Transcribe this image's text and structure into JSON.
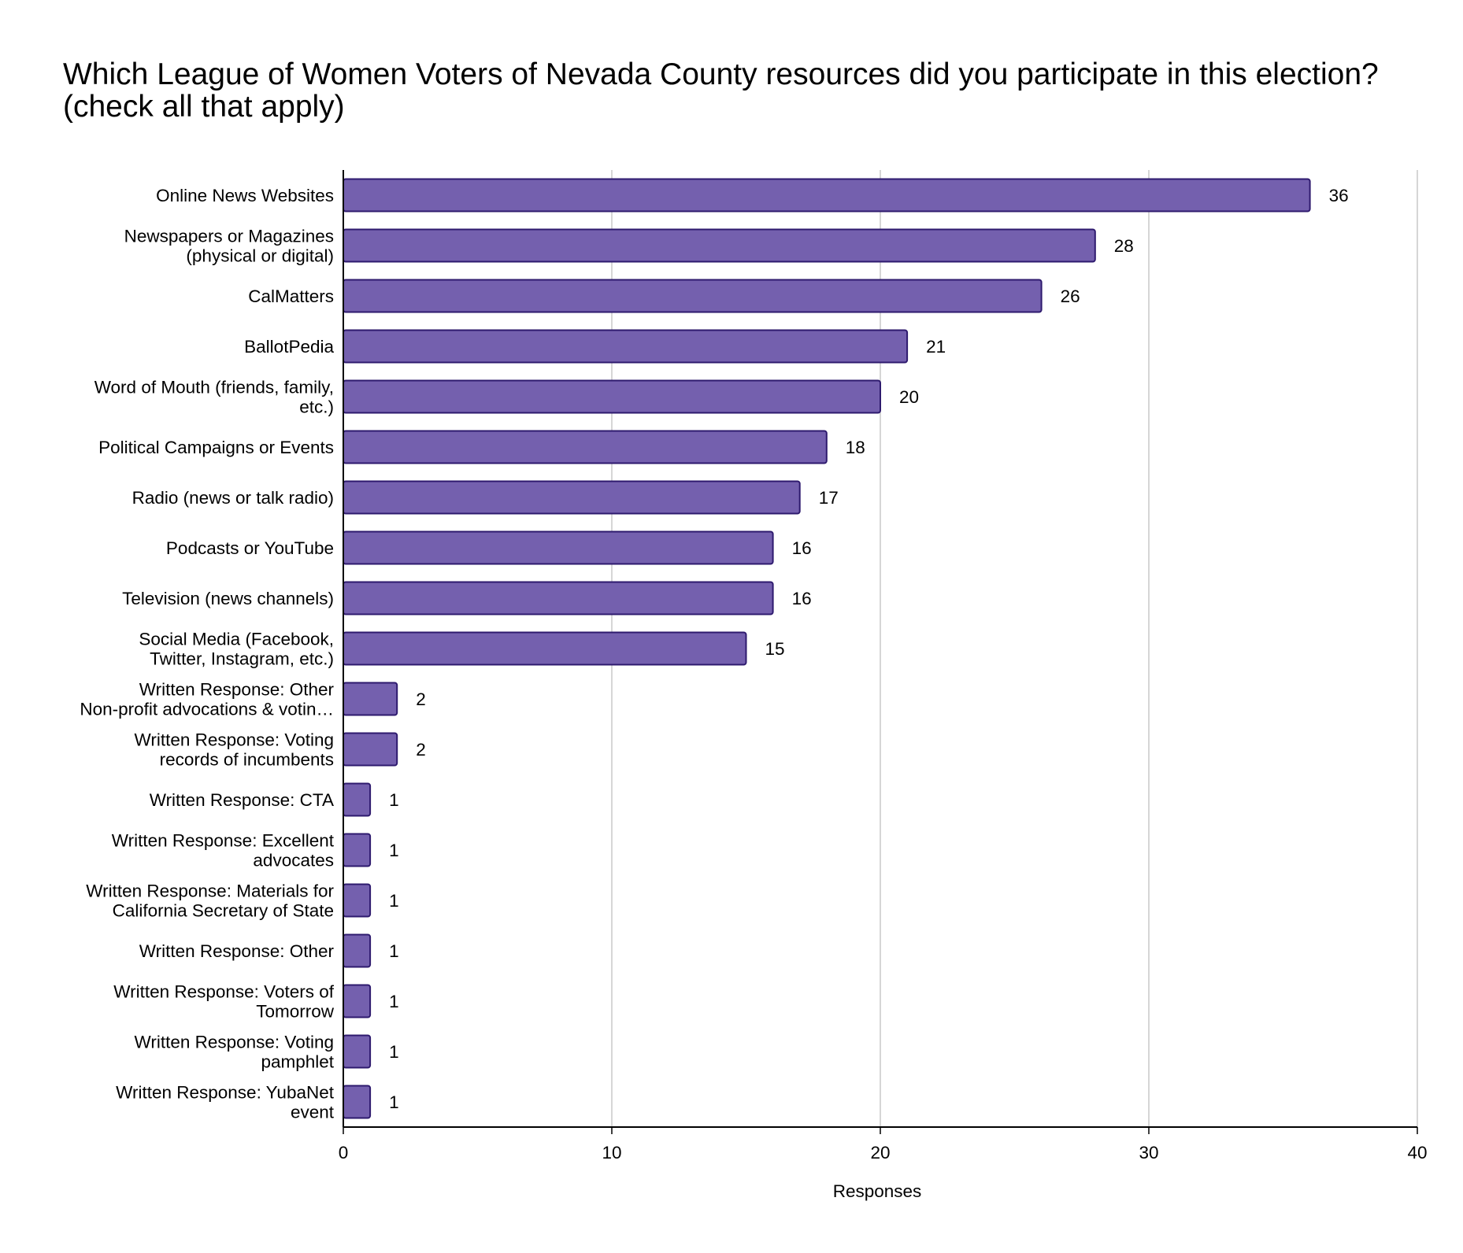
{
  "chart_data": {
    "type": "bar",
    "orientation": "horizontal",
    "title": "Which League of Women Voters of Nevada County resources did you participate in this election? (check all that apply)",
    "xlabel": "Responses",
    "ylabel": "",
    "xlim": [
      0,
      40
    ],
    "xticks": [
      0,
      10,
      20,
      30,
      40
    ],
    "grid": true,
    "bar_color": "#7460ae",
    "bar_edge_color": "#2e1a6e",
    "categories": [
      [
        "Online News Websites"
      ],
      [
        "Newspapers or Magazines",
        "(physical or digital)"
      ],
      [
        "CalMatters"
      ],
      [
        "BallotPedia"
      ],
      [
        "Word of Mouth (friends, family,",
        "etc.)"
      ],
      [
        "Political Campaigns or Events"
      ],
      [
        "Radio (news or talk radio)"
      ],
      [
        "Podcasts or YouTube"
      ],
      [
        "Television (news channels)"
      ],
      [
        "Social Media (Facebook,",
        "Twitter, Instagram, etc.)"
      ],
      [
        "Written Response: Other",
        "Non-profit advocations & votin…"
      ],
      [
        "Written Response: Voting",
        "records of incumbents"
      ],
      [
        "Written Response: CTA"
      ],
      [
        "Written Response: Excellent",
        "advocates"
      ],
      [
        "Written Response: Materials for",
        "California Secretary of State"
      ],
      [
        "Written Response: Other"
      ],
      [
        "Written Response: Voters of",
        "Tomorrow"
      ],
      [
        "Written Response: Voting",
        "pamphlet"
      ],
      [
        "Written Response: YubaNet",
        "event"
      ]
    ],
    "values": [
      36,
      28,
      26,
      21,
      20,
      18,
      17,
      16,
      16,
      15,
      2,
      2,
      1,
      1,
      1,
      1,
      1,
      1,
      1
    ]
  }
}
